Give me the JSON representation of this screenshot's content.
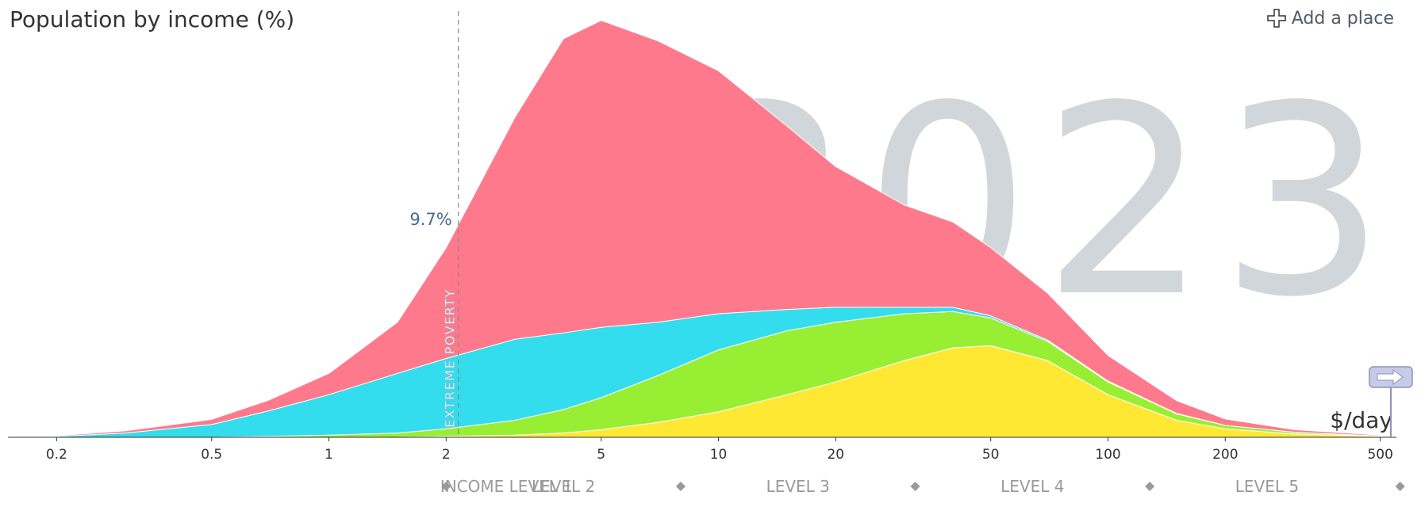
{
  "header": {
    "title": "Population by income (%)",
    "add_place_label": "Add a place"
  },
  "year": "2023",
  "poverty": {
    "label": "EXTREME POVERTY",
    "value_label": "9.7%",
    "line_x": 2.15
  },
  "axis": {
    "unit_label": "$/day"
  },
  "income_levels": [
    "INCOME LEVEL 1",
    "LEVEL 2",
    "LEVEL 3",
    "LEVEL 4",
    "LEVEL 5"
  ],
  "chart_data": {
    "type": "area",
    "title": "Population by income (%)",
    "xlabel": "$/day",
    "xscale": "log",
    "xlim": [
      0.15,
      550
    ],
    "x_ticks": [
      0.2,
      0.5,
      1,
      2,
      5,
      10,
      20,
      50,
      100,
      200,
      500
    ],
    "ylim": [
      0,
      1
    ],
    "x": [
      0.15,
      0.2,
      0.3,
      0.5,
      0.7,
      1,
      1.5,
      2,
      3,
      4,
      5,
      7,
      10,
      15,
      20,
      30,
      40,
      50,
      70,
      100,
      150,
      200,
      300,
      500,
      550
    ],
    "stacked": true,
    "series": [
      {
        "color": "#ffe833",
        "values": [
          0,
          0,
          0,
          0,
          0,
          0,
          0,
          0.002,
          0.005,
          0.01,
          0.018,
          0.035,
          0.06,
          0.1,
          0.13,
          0.18,
          0.21,
          0.215,
          0.18,
          0.1,
          0.04,
          0.02,
          0.008,
          0.002,
          0
        ]
      },
      {
        "color": "#98ee33",
        "values": [
          0,
          0,
          0,
          0,
          0.002,
          0.005,
          0.01,
          0.018,
          0.035,
          0.055,
          0.075,
          0.11,
          0.145,
          0.15,
          0.14,
          0.11,
          0.085,
          0.065,
          0.045,
          0.03,
          0.015,
          0.008,
          0.004,
          0.001,
          0
        ]
      },
      {
        "color": "#33dded",
        "values": [
          0,
          0.002,
          0.01,
          0.03,
          0.06,
          0.095,
          0.14,
          0.165,
          0.19,
          0.18,
          0.165,
          0.125,
          0.085,
          0.05,
          0.035,
          0.015,
          0.01,
          0.005,
          0.003,
          0.002,
          0.001,
          0,
          0,
          0,
          0
        ]
      },
      {
        "color": "#ff798c",
        "values": [
          0,
          0.002,
          0.005,
          0.012,
          0.025,
          0.05,
          0.12,
          0.26,
          0.52,
          0.69,
          0.72,
          0.66,
          0.57,
          0.43,
          0.33,
          0.24,
          0.2,
          0.16,
          0.11,
          0.06,
          0.03,
          0.015,
          0.006,
          0.002,
          0
        ]
      }
    ]
  }
}
